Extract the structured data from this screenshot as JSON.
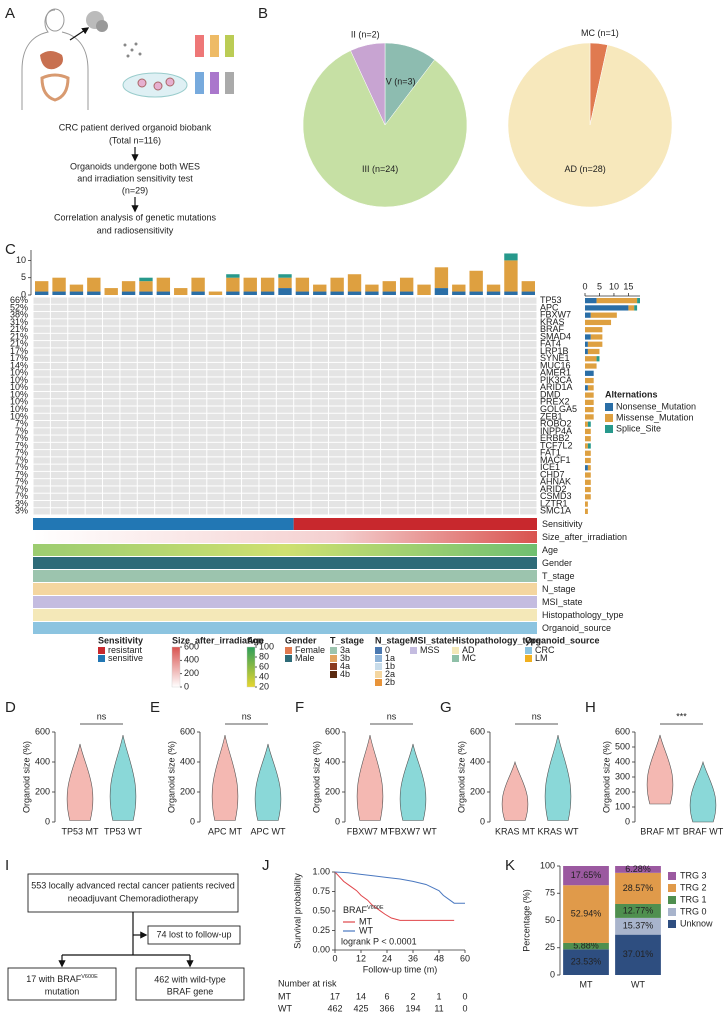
{
  "panel_labels": [
    "A",
    "B",
    "C",
    "D",
    "E",
    "F",
    "G",
    "H",
    "I",
    "J",
    "K"
  ],
  "panel_a": {
    "steps": [
      [
        "CRC patient derived organoid biobank",
        "(Total n=116)"
      ],
      [
        "Organoids undergone both WES",
        "and irradiation sensitivity test",
        "(n=29)"
      ],
      [
        "Correlation analysis of genetic mutations",
        "and radiosensitivity"
      ]
    ]
  },
  "panel_i": {
    "cohort": [
      "553 locally advanced rectal cancer patients recived",
      "neoadjuvant Chemoradiotherapy"
    ],
    "lost": "74 lost to follow-up",
    "mt": {
      "text": "17 with BRAF",
      "superscript": "V600E",
      "text2": "mutation"
    },
    "wt": [
      "462 with wild-type",
      "BRAF gene"
    ]
  },
  "chart_data": [
    {
      "type": "pie",
      "categories": [
        "IV (n=3)",
        "III (n=24)",
        "II (n=2)"
      ],
      "values": [
        3,
        24,
        2
      ],
      "colors": [
        "#8dbcb0",
        "#c6e0a4",
        "#c8a4d2"
      ]
    },
    {
      "type": "pie",
      "categories": [
        "MC (n=1)",
        "AD (n=28)"
      ],
      "values": [
        1,
        28
      ],
      "colors": [
        "#e07a50",
        "#f7e8bc"
      ]
    },
    {
      "type": "oncoplot",
      "genes": [
        "TP53",
        "APC",
        "FBXW7",
        "KRAS",
        "BRAF",
        "SMAD4",
        "FAT4",
        "LRP1B",
        "SYNE1",
        "MUC16",
        "AMER1",
        "PIK3CA",
        "ARID1A",
        "DMD",
        "PREX2",
        "GOLGA5",
        "ZEB1",
        "ROBO2",
        "INPP4A",
        "ERBB2",
        "TCF7L2",
        "FAT1",
        "MACF1",
        "ICE1",
        "CHD7",
        "AHNAK",
        "ARID2",
        "CSMD3",
        "LZTR1",
        "SMC1A"
      ],
      "frequencies": [
        {
          "value": 66,
          "label": "66%"
        },
        {
          "value": 52,
          "label": "52%"
        },
        {
          "value": 38,
          "label": "38%"
        },
        {
          "value": 31,
          "label": "31%"
        },
        {
          "value": 21,
          "label": "21%"
        },
        {
          "value": 21,
          "label": "21%"
        },
        {
          "value": 21,
          "label": "21%"
        },
        {
          "value": 17,
          "label": "17%"
        },
        {
          "value": 17,
          "label": "17%"
        },
        {
          "value": 14,
          "label": "14%"
        },
        {
          "value": 10,
          "label": "10%"
        },
        {
          "value": 10,
          "label": "10%"
        },
        {
          "value": 10,
          "label": "10%"
        },
        {
          "value": 10,
          "label": "10%"
        },
        {
          "value": 10,
          "label": "10%"
        },
        {
          "value": 10,
          "label": "10%"
        },
        {
          "value": 10,
          "label": "10%"
        },
        {
          "value": 7,
          "label": "7%"
        },
        {
          "value": 7,
          "label": "7%"
        },
        {
          "value": 7,
          "label": "7%"
        },
        {
          "value": 7,
          "label": "7%"
        },
        {
          "value": 7,
          "label": "7%"
        },
        {
          "value": 7,
          "label": "7%"
        },
        {
          "value": 7,
          "label": "7%"
        },
        {
          "value": 7,
          "label": "7%"
        },
        {
          "value": 7,
          "label": "7%"
        },
        {
          "value": 7,
          "label": "7%"
        },
        {
          "value": 7,
          "label": "7%"
        },
        {
          "value": 3,
          "label": "3%"
        },
        {
          "value": 3,
          "label": "3%"
        }
      ],
      "gene_series": [
        {
          "name": "Nonsense_Mutation",
          "color": "#2a6ea6",
          "values": [
            4,
            15,
            2,
            0,
            0,
            2,
            1,
            1,
            0,
            0,
            3,
            0,
            1,
            0,
            0,
            0,
            0,
            0,
            0,
            0,
            0,
            0,
            0,
            1,
            0,
            0,
            0,
            0,
            0,
            0
          ]
        },
        {
          "name": "Missense_Mutation",
          "color": "#dea040",
          "values": [
            14,
            2,
            9,
            9,
            6,
            4,
            5,
            4,
            4,
            4,
            0,
            3,
            2,
            3,
            3,
            3,
            3,
            1,
            2,
            2,
            1,
            2,
            2,
            1,
            2,
            2,
            2,
            2,
            1,
            1
          ]
        },
        {
          "name": "Splice_Site",
          "color": "#27998c",
          "values": [
            1,
            1,
            0,
            0,
            0,
            0,
            0,
            0,
            1,
            0,
            0,
            0,
            0,
            0,
            0,
            0,
            0,
            1,
            0,
            0,
            1,
            0,
            0,
            0,
            0,
            0,
            0,
            0,
            0,
            0
          ]
        }
      ],
      "gene_xlim": [
        0,
        19
      ],
      "gene_xticks": [
        0,
        5,
        10,
        15
      ],
      "sample_series": [
        {
          "name": "Nonsense_Mutation",
          "values": [
            1,
            1,
            1,
            1,
            0,
            1,
            1,
            1,
            0,
            1,
            0,
            1,
            1,
            1,
            2,
            1,
            1,
            1,
            1,
            1,
            1,
            1,
            0,
            2,
            1,
            1,
            1,
            1,
            1
          ]
        },
        {
          "name": "Missense_Mutation",
          "values": [
            3,
            4,
            2,
            4,
            2,
            3,
            3,
            4,
            2,
            4,
            1,
            4,
            4,
            4,
            3,
            4,
            2,
            4,
            5,
            2,
            3,
            4,
            3,
            6,
            2,
            6,
            2,
            9,
            3
          ]
        },
        {
          "name": "Splice_Site",
          "values": [
            0,
            0,
            0,
            0,
            0,
            0,
            1,
            0,
            0,
            0,
            0,
            1,
            0,
            0,
            1,
            0,
            0,
            0,
            0,
            0,
            0,
            0,
            0,
            0,
            0,
            0,
            0,
            2,
            0
          ]
        }
      ],
      "sample_ylim": [
        0,
        13
      ],
      "sample_yticks": [
        0,
        5,
        10
      ],
      "legend_title": "Alternations",
      "tracks": [
        "Sensitivity",
        "Size_after_irradiation",
        "Age",
        "Gender",
        "T_stage",
        "N_stage",
        "MSI_state",
        "Histopathology_type",
        "Organoid_source"
      ],
      "sensitivity": {
        "title": "Sensitivity",
        "items": [
          "resistant",
          "sensitive"
        ],
        "values": [
          14,
          15
        ],
        "colors": [
          "#c8282d",
          "#2277b4"
        ]
      },
      "size_legend": {
        "title": "Size_after_irradiation",
        "ticks": [
          0,
          200,
          400,
          600
        ],
        "colors": [
          "#ffffff",
          "#d9534f"
        ]
      },
      "age_legend": {
        "title": "Age",
        "ticks": [
          20,
          40,
          60,
          80,
          100
        ],
        "colors": [
          "#e6d630",
          "#2e9e5a"
        ]
      },
      "legends": [
        {
          "title": "Gender",
          "items": [
            "Female",
            "Male"
          ],
          "colors": [
            "#e07a50",
            "#2e6b78"
          ]
        },
        {
          "title": "T_stage",
          "items": [
            "3a",
            "3b",
            "4a",
            "4b"
          ],
          "colors": [
            "#9cc4ae",
            "#e2a460",
            "#8b3a1e",
            "#5a2a10"
          ]
        },
        {
          "title": "N_stage",
          "items": [
            "0",
            "1a",
            "1b",
            "2a",
            "2b"
          ],
          "colors": [
            "#4a78b0",
            "#8fb4d8",
            "#c8dcea",
            "#f4d6a0",
            "#e8943a"
          ]
        },
        {
          "title": "MSI_state",
          "items": [
            "MSS"
          ],
          "colors": [
            "#c4bce0"
          ]
        },
        {
          "title": "Histopathology_type",
          "items": [
            "AD",
            "MC"
          ],
          "colors": [
            "#f4e8b8",
            "#8fc0a8"
          ]
        },
        {
          "title": "Organoid_source",
          "items": [
            "CRC",
            "LM"
          ],
          "colors": [
            "#8cc4e0",
            "#f0b020"
          ]
        }
      ]
    },
    {
      "type": "violin",
      "categories": [
        "TP53 MT",
        "TP53 WT"
      ],
      "ranges": [
        [
          10,
          520
        ],
        [
          10,
          580
        ]
      ],
      "colors": [
        "#f4b8b2",
        "#8ad8d8"
      ],
      "ylabel": "Organoid size (%)",
      "ylim": [
        0,
        600
      ],
      "yticks": [
        0,
        200,
        400,
        600
      ],
      "significance": "ns"
    },
    {
      "type": "violin",
      "categories": [
        "APC MT",
        "APC WT"
      ],
      "ranges": [
        [
          10,
          580
        ],
        [
          10,
          520
        ]
      ],
      "colors": [
        "#f4b8b2",
        "#8ad8d8"
      ],
      "ylabel": "Organoid size (%)",
      "ylim": [
        0,
        600
      ],
      "yticks": [
        0,
        200,
        400,
        600
      ],
      "significance": "ns"
    },
    {
      "type": "violin",
      "categories": [
        "FBXW7 MT",
        "FBXW7 WT"
      ],
      "ranges": [
        [
          10,
          580
        ],
        [
          10,
          520
        ]
      ],
      "colors": [
        "#f4b8b2",
        "#8ad8d8"
      ],
      "ylabel": "Organoid size (%)",
      "ylim": [
        0,
        600
      ],
      "yticks": [
        0,
        200,
        400,
        600
      ],
      "significance": "ns"
    },
    {
      "type": "violin",
      "categories": [
        "KRAS MT",
        "KRAS WT"
      ],
      "ranges": [
        [
          10,
          400
        ],
        [
          10,
          580
        ]
      ],
      "colors": [
        "#f4b8b2",
        "#8ad8d8"
      ],
      "ylabel": "Organoid size (%)",
      "ylim": [
        0,
        600
      ],
      "yticks": [
        0,
        200,
        400,
        600
      ],
      "significance": "ns"
    },
    {
      "type": "violin",
      "categories": [
        "BRAF MT",
        "BRAF WT"
      ],
      "ranges": [
        [
          120,
          580
        ],
        [
          0,
          400
        ]
      ],
      "colors": [
        "#f4b8b2",
        "#8ad8d8"
      ],
      "ylabel": "Organoid size (%)",
      "ylim": [
        0,
        600
      ],
      "yticks": [
        0,
        100,
        200,
        300,
        400,
        500,
        600
      ],
      "significance": "***"
    },
    {
      "type": "line",
      "ylabel": "Survival probability",
      "xlabel": "Follow-up time (m)",
      "xlim": [
        0,
        60
      ],
      "xticks": [
        0,
        12,
        24,
        36,
        48,
        60
      ],
      "ylim": [
        0,
        1
      ],
      "yticks": [
        {
          "value": 0,
          "label": "0.00"
        },
        {
          "value": 0.25,
          "label": "0.25"
        },
        {
          "value": 0.5,
          "label": "0.50"
        },
        {
          "value": 0.75,
          "label": "0.75"
        },
        {
          "value": 1,
          "label": "1.00"
        }
      ],
      "legend_title": "BRAF",
      "legend_superscript": "V600E",
      "annotation": "logrank P < 0.0001",
      "series": [
        {
          "name": "MT",
          "color": "#e0454a",
          "x": [
            0,
            2,
            4,
            7,
            10,
            12,
            15,
            17,
            20,
            23,
            26,
            30,
            40,
            55
          ],
          "values": [
            1,
            0.94,
            0.88,
            0.82,
            0.76,
            0.7,
            0.64,
            0.58,
            0.52,
            0.46,
            0.41,
            0.38,
            0.38,
            0.38
          ]
        },
        {
          "name": "WT",
          "color": "#4a78c0",
          "x": [
            0,
            6,
            12,
            18,
            24,
            30,
            36,
            42,
            45,
            48,
            50,
            53,
            55,
            60
          ],
          "values": [
            1,
            0.99,
            0.97,
            0.95,
            0.93,
            0.91,
            0.88,
            0.84,
            0.8,
            0.76,
            0.7,
            0.64,
            0.6,
            0.6
          ]
        }
      ],
      "risk_table": {
        "title": "Number at risk",
        "rows": [
          [
            17,
            14,
            6,
            2,
            1,
            0
          ],
          [
            462,
            425,
            366,
            194,
            11,
            0
          ]
        ]
      }
    },
    {
      "type": "stacked_bar",
      "categories": [
        "MT",
        "WT"
      ],
      "ylabel": "Percentage (%)",
      "ylim": [
        0,
        100
      ],
      "yticks": [
        0,
        25,
        50,
        75,
        100
      ],
      "series": [
        {
          "name": "Unknow",
          "color": "#2e4e80",
          "values": [
            23.53,
            37.01
          ],
          "value_labels": [
            "23.53%",
            "37.01%"
          ]
        },
        {
          "name": "TRG 0",
          "color": "#a8b4cc",
          "values": [
            0,
            15.37
          ],
          "value_labels": [
            null,
            "15.37%"
          ]
        },
        {
          "name": "TRG 1",
          "color": "#4f8f4f",
          "values": [
            5.88,
            12.77
          ],
          "value_labels": [
            "5.88%",
            "12.77%"
          ]
        },
        {
          "name": "TRG 2",
          "color": "#e09a4a",
          "values": [
            52.94,
            28.57
          ],
          "value_labels": [
            "52.94%",
            "28.57%"
          ]
        },
        {
          "name": "TRG 3",
          "color": "#9b59a0",
          "values": [
            17.65,
            6.28
          ],
          "value_labels": [
            "17.65%",
            "6.28%"
          ]
        }
      ]
    }
  ]
}
